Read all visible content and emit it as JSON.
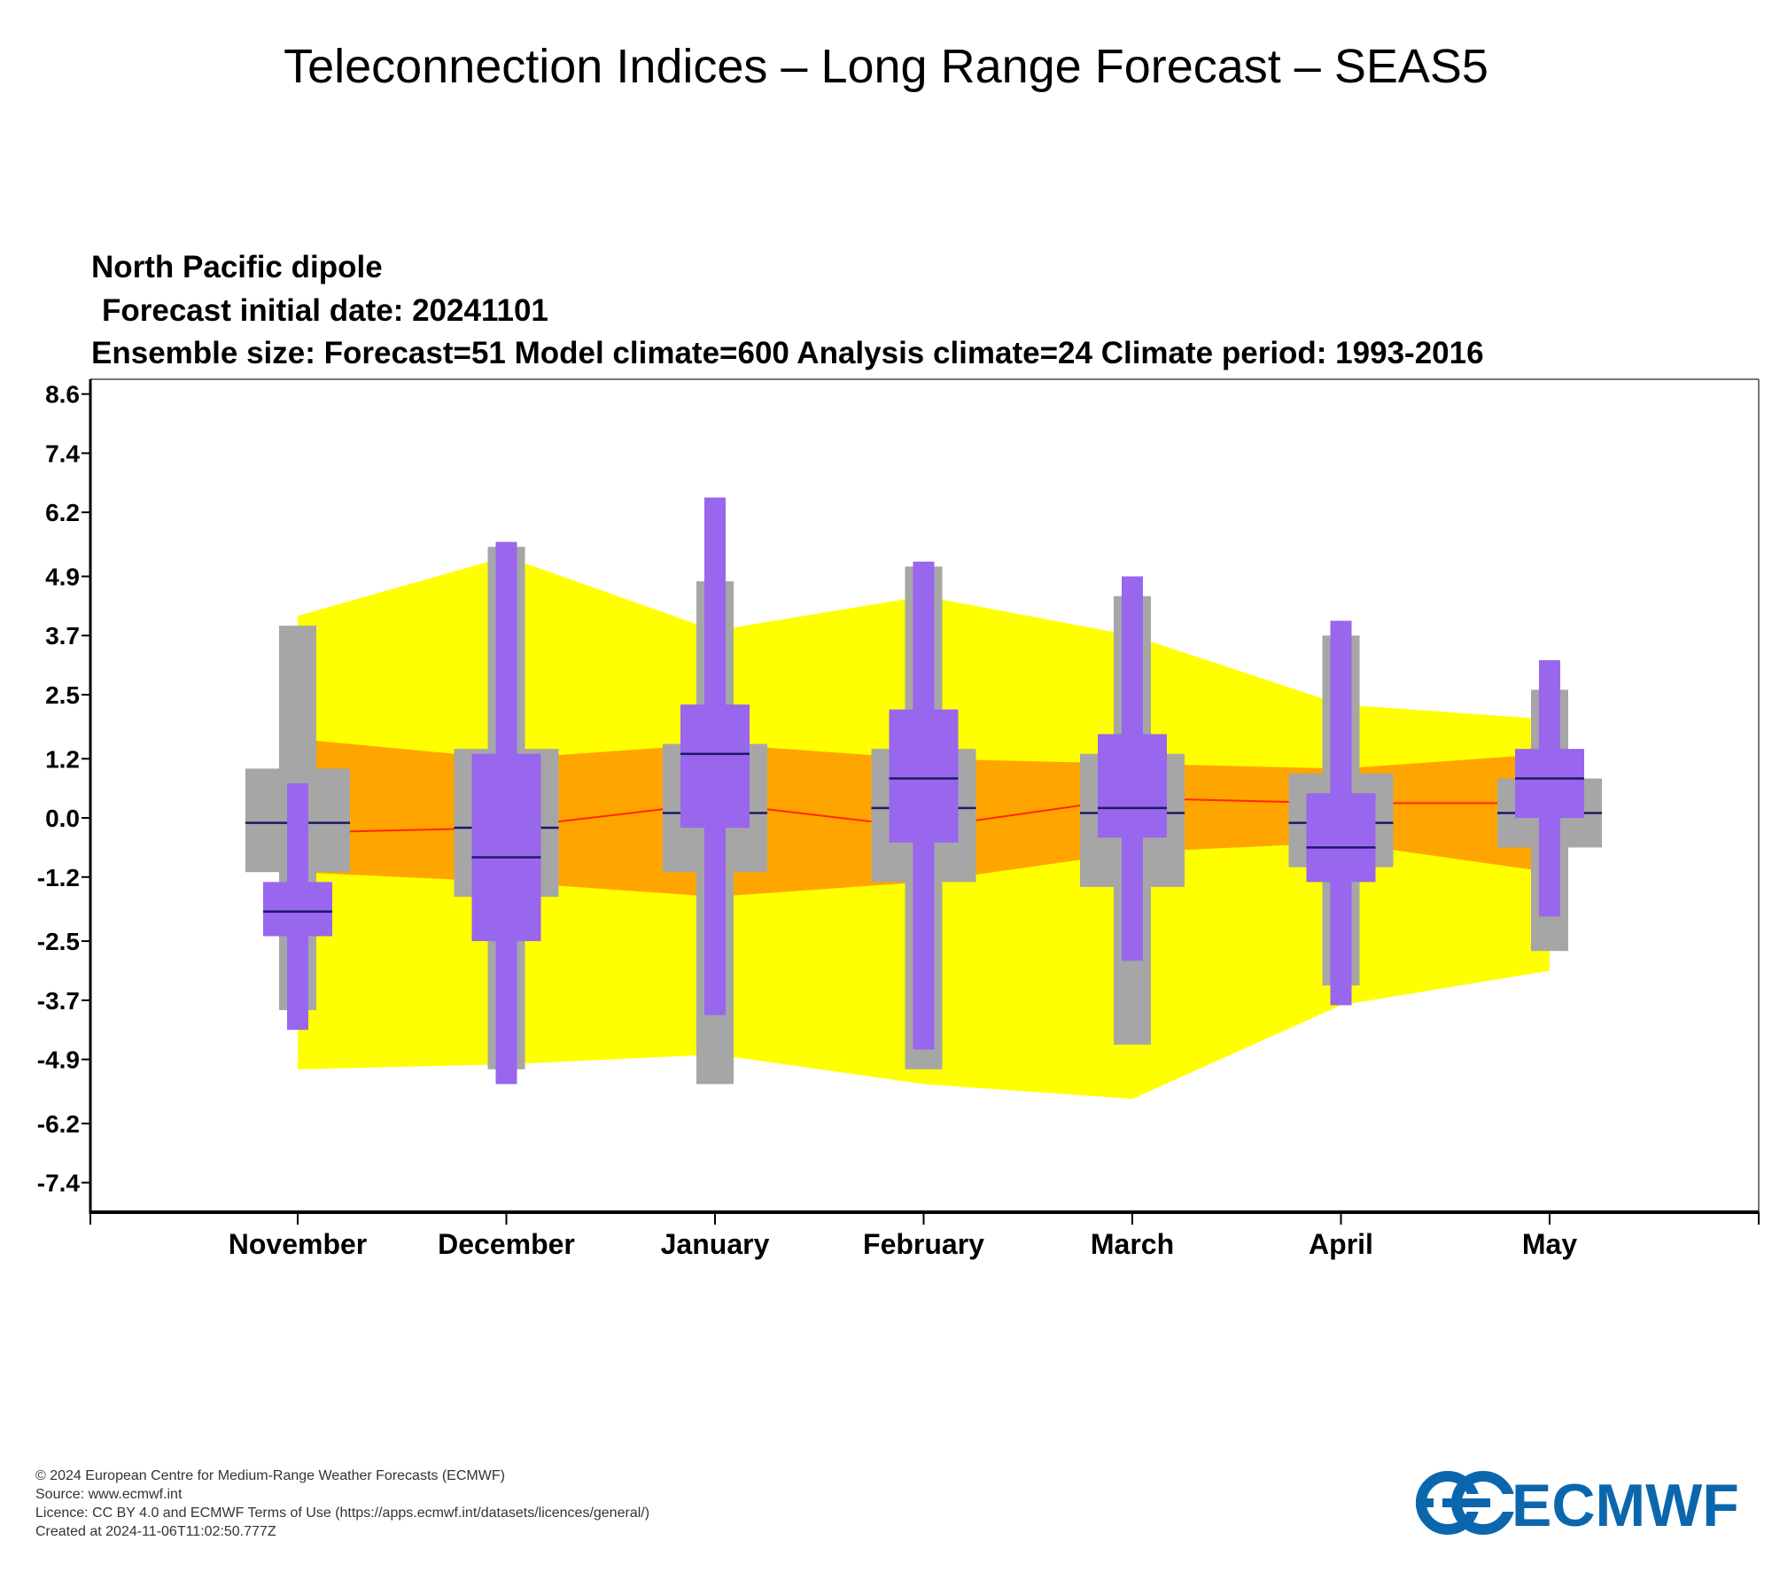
{
  "page": {
    "main_title": "Teleconnection Indices – Long Range Forecast – SEAS5"
  },
  "chart_data": {
    "type": "box",
    "title": "North Pacific dipole",
    "subtitle_lines": [
      "Forecast initial date: 20241101",
      "Ensemble size: Forecast=51 Model climate=600 Analysis climate=24   Climate period: 1993-2016"
    ],
    "y_ticks": [
      "8.6",
      "7.4",
      "6.2",
      "4.9",
      "3.7",
      "2.5",
      "1.2",
      "0.0",
      "-1.2",
      "-2.5",
      "-3.7",
      "-4.9",
      "-6.2",
      "-7.4"
    ],
    "y_tick_values": [
      8.6,
      7.4,
      6.2,
      4.9,
      3.7,
      2.5,
      1.2,
      0.0,
      -1.2,
      -2.5,
      -3.7,
      -4.9,
      -6.2,
      -7.4
    ],
    "ylim": [
      -8.0,
      8.9
    ],
    "categories": [
      "November",
      "December",
      "January",
      "February",
      "March",
      "April",
      "May"
    ],
    "analysis_climate": {
      "median": [
        -0.3,
        -0.2,
        0.3,
        -0.2,
        0.4,
        0.3,
        0.3
      ],
      "inner_lower": [
        -1.1,
        -1.3,
        -1.6,
        -1.3,
        -0.7,
        -0.5,
        -1.1
      ],
      "inner_upper": [
        1.6,
        1.2,
        1.5,
        1.2,
        1.1,
        1.0,
        1.3
      ],
      "outer_lower": [
        -5.1,
        -5.0,
        -4.8,
        -5.4,
        -5.7,
        -3.8,
        -3.1
      ],
      "outer_upper": [
        4.1,
        5.3,
        3.8,
        4.5,
        3.7,
        2.3,
        2.0
      ]
    },
    "model_climate": {
      "min": [
        -3.9,
        -5.1,
        -5.4,
        -5.1,
        -4.6,
        -3.4,
        -2.7
      ],
      "q1": [
        -1.1,
        -1.6,
        -1.1,
        -1.3,
        -1.4,
        -1.0,
        -0.6
      ],
      "median": [
        -0.1,
        -0.2,
        0.1,
        0.2,
        0.1,
        -0.1,
        0.1
      ],
      "q3": [
        1.0,
        1.4,
        1.5,
        1.4,
        1.3,
        0.9,
        0.8
      ],
      "max": [
        3.9,
        5.5,
        4.8,
        5.1,
        4.5,
        3.7,
        2.6
      ]
    },
    "forecast": {
      "min": [
        -4.3,
        -5.4,
        -4.0,
        -4.7,
        -2.9,
        -3.8,
        -2.0
      ],
      "q1": [
        -2.4,
        -2.5,
        -0.2,
        -0.5,
        -0.4,
        -1.3,
        0.0
      ],
      "median": [
        -1.9,
        -0.8,
        1.3,
        0.8,
        0.2,
        -0.6,
        0.8
      ],
      "q3": [
        -1.3,
        1.3,
        2.3,
        2.2,
        1.7,
        0.5,
        1.4
      ],
      "max": [
        0.7,
        5.6,
        6.5,
        5.2,
        4.9,
        4.0,
        3.2
      ]
    },
    "colors": {
      "outer_band": "#ffff00",
      "inner_band": "#ffa500",
      "median_line": "#ff2a00",
      "model_box": "#a6a6a6",
      "forecast_box": "#9966ee",
      "median_tick": "#1a1a66"
    }
  },
  "footer": {
    "copyright": "© 2024 European Centre for Medium-Range Weather Forecasts (ECMWF)",
    "source": "Source: www.ecmwf.int",
    "licence": "Licence: CC BY 4.0 and ECMWF Terms of Use (https://apps.ecmwf.int/datasets/licences/general/)",
    "created": "Created at 2024-11-06T11:02:50.777Z"
  },
  "logo": {
    "text": "ECMWF",
    "color": "#0b67ad"
  }
}
